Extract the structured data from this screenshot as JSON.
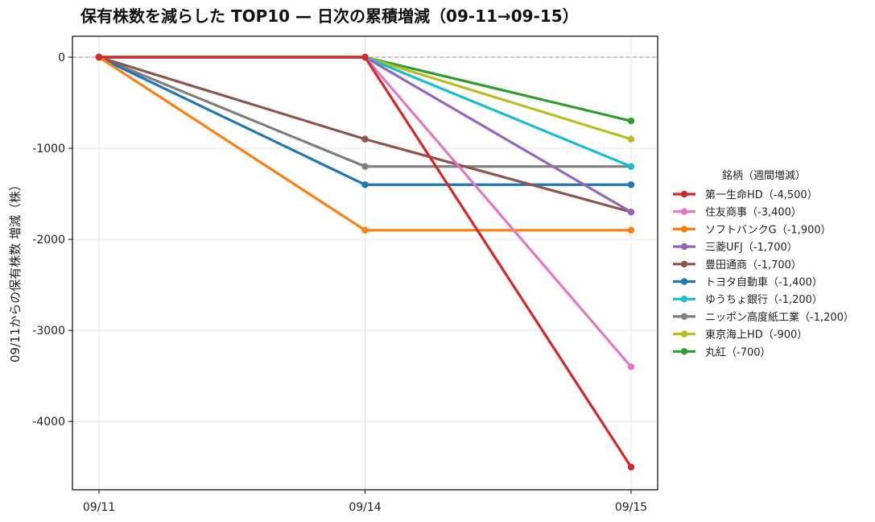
{
  "chart_data": {
    "type": "line",
    "title": "保有株数を減らした TOP10 — 日次の累積増減（09-11→09-15）",
    "xlabel": "",
    "ylabel": "09/11からの保有株数 増減（株）",
    "categories": [
      "09/11",
      "09/14",
      "09/15"
    ],
    "ylim": [
      -4750,
      230
    ],
    "yticks": [
      0,
      -1000,
      -2000,
      -3000,
      -4000
    ],
    "ytick_labels": [
      "0",
      "-1000",
      "-2000",
      "-3000",
      "-4000"
    ],
    "grid": true,
    "zero_line": "dashed",
    "legend_title": "銘柄（週間増減）",
    "legend_position": "right",
    "series": [
      {
        "name": "第一生命HD（-4,500）",
        "color": "#d62728",
        "values": [
          0,
          0,
          -4500
        ]
      },
      {
        "name": "住友商事（-3,400）",
        "color": "#e377c2",
        "values": [
          0,
          0,
          -3400
        ]
      },
      {
        "name": "ソフトバンクG（-1,900）",
        "color": "#ff7f0e",
        "values": [
          0,
          -1900,
          -1900
        ]
      },
      {
        "name": "三菱UFJ（-1,700）",
        "color": "#9467bd",
        "values": [
          0,
          0,
          -1700
        ]
      },
      {
        "name": "豊田通商（-1,700）",
        "color": "#8c564b",
        "values": [
          0,
          -900,
          -1700
        ]
      },
      {
        "name": "トヨタ自動車（-1,400）",
        "color": "#1f77b4",
        "values": [
          0,
          -1400,
          -1400
        ]
      },
      {
        "name": "ゆうちょ銀行（-1,200）",
        "color": "#17becf",
        "values": [
          0,
          0,
          -1200
        ]
      },
      {
        "name": "ニッポン高度紙工業（-1,200）",
        "color": "#7f7f7f",
        "values": [
          0,
          -1200,
          -1200
        ]
      },
      {
        "name": "東京海上HD（-900）",
        "color": "#bcbd22",
        "values": [
          0,
          0,
          -900
        ]
      },
      {
        "name": "丸紅（-700）",
        "color": "#2ca02c",
        "values": [
          0,
          0,
          -700
        ]
      }
    ]
  }
}
